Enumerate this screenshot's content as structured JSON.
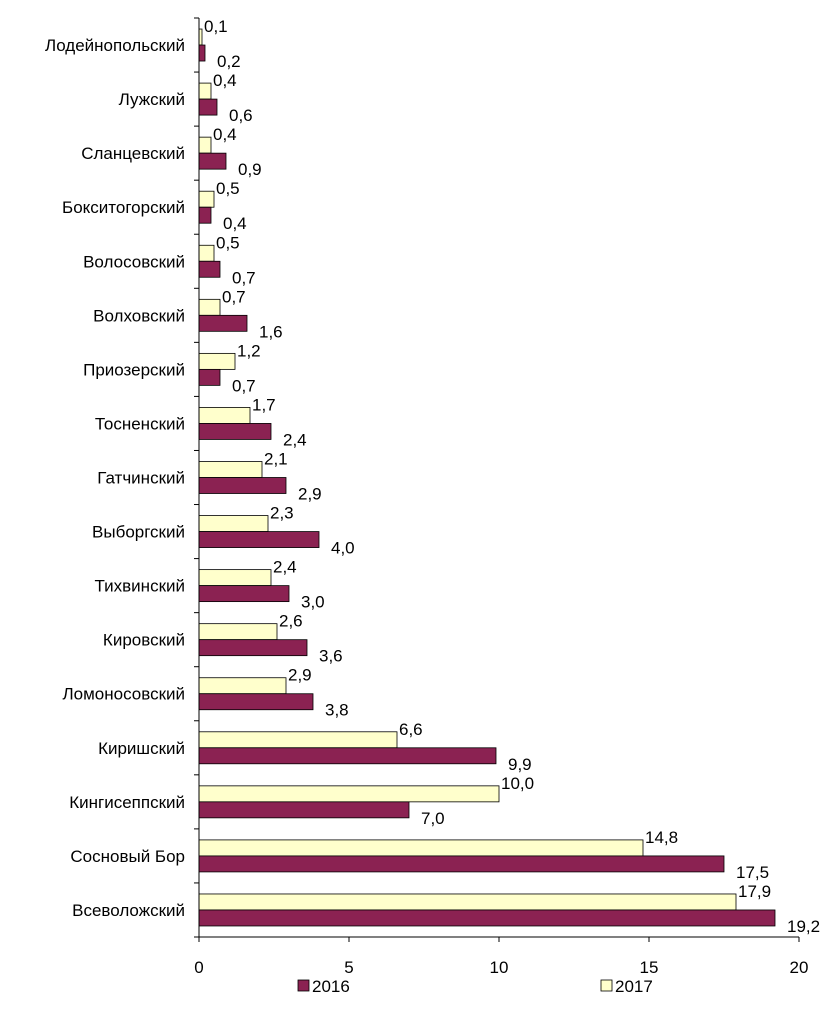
{
  "chart_data": {
    "type": "bar",
    "orientation": "horizontal",
    "categories": [
      "Лодейнопольский",
      "Лужский",
      "Сланцевский",
      "Бокситогорский",
      "Волосовский",
      "Волховский",
      "Приозерский",
      "Тосненский",
      "Гатчинский",
      "Выборгский",
      "Тихвинский",
      "Кировский",
      "Ломоносовский",
      "Киришский",
      "Кингисеппский",
      "Сосновый Бор",
      "Всеволожский"
    ],
    "series": [
      {
        "name": "2016",
        "color": "#8B2252",
        "values": [
          0.2,
          0.6,
          0.9,
          0.4,
          0.7,
          1.6,
          0.7,
          2.4,
          2.9,
          4.0,
          3.0,
          3.6,
          3.8,
          9.9,
          7.0,
          17.5,
          19.2
        ],
        "labels": [
          "0,2",
          "0,6",
          "0,9",
          "0,4",
          "0,7",
          "1,6",
          "0,7",
          "2,4",
          "2,9",
          "4,0",
          "3,0",
          "3,6",
          "3,8",
          "9,9",
          "7,0",
          "17,5",
          "19,2"
        ]
      },
      {
        "name": "2017",
        "color": "#FFFFCC",
        "values": [
          0.1,
          0.4,
          0.4,
          0.5,
          0.5,
          0.7,
          1.2,
          1.7,
          2.1,
          2.3,
          2.4,
          2.6,
          2.9,
          6.6,
          10.0,
          14.8,
          17.9
        ],
        "labels": [
          "0,1",
          "0,4",
          "0,4",
          "0,5",
          "0,5",
          "0,7",
          "1,2",
          "1,7",
          "2,1",
          "2,3",
          "2,4",
          "2,6",
          "2,9",
          "6,6",
          "10,0",
          "14,8",
          "17,9"
        ]
      }
    ],
    "xlim": [
      0,
      20
    ],
    "xticks": [
      "0",
      "5",
      "10",
      "15",
      "20"
    ],
    "grid": false,
    "legend": {
      "position": "bottom",
      "entries": [
        "2016",
        "2017"
      ]
    }
  }
}
